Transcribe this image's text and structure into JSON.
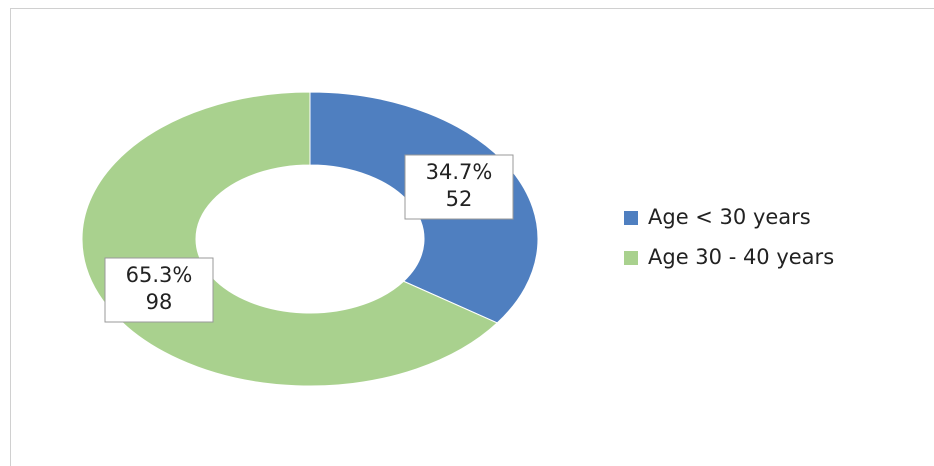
{
  "chart_data": {
    "type": "donut",
    "categories": [
      "Age < 30 years",
      "Age 30 - 40 years"
    ],
    "values": [
      52,
      98
    ],
    "percentages": [
      34.7,
      65.3
    ],
    "percentage_labels": [
      "34.7%",
      "65.3%"
    ],
    "colors": [
      "#4f7fc0",
      "#a9d18e"
    ],
    "legend": "right"
  }
}
